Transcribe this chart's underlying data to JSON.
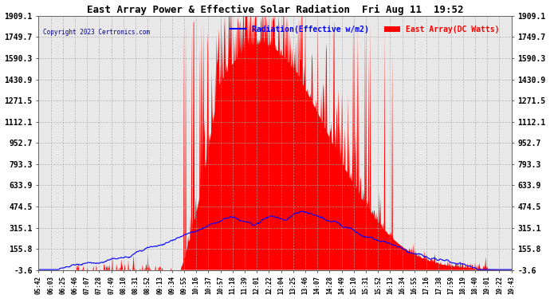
{
  "title": "East Array Power & Effective Solar Radiation  Fri Aug 11  19:52",
  "copyright": "Copyright 2023 Certronics.com",
  "legend_radiation": "Radiation(Effective w/m2)",
  "legend_east": "East Array(DC Watts)",
  "yticks": [
    -3.6,
    155.8,
    315.1,
    474.5,
    633.9,
    793.3,
    952.7,
    1112.1,
    1271.5,
    1430.9,
    1590.3,
    1749.7,
    1909.1
  ],
  "ymin": -3.6,
  "ymax": 1909.1,
  "plot_bg_color": "#f0f0f0",
  "title_color": "#000000",
  "red_color": "#ff0000",
  "blue_color": "#0000ff",
  "grid_color": "#aaaaaa",
  "xtick_labels": [
    "05:42",
    "06:03",
    "06:25",
    "06:46",
    "07:07",
    "07:28",
    "07:49",
    "08:10",
    "08:31",
    "08:52",
    "09:13",
    "09:34",
    "09:55",
    "10:16",
    "10:37",
    "10:57",
    "11:18",
    "11:39",
    "12:01",
    "12:22",
    "13:04",
    "13:25",
    "13:46",
    "14:07",
    "14:28",
    "14:49",
    "15:10",
    "15:31",
    "15:52",
    "16:13",
    "16:34",
    "16:55",
    "17:16",
    "17:38",
    "17:59",
    "18:19",
    "18:40",
    "19:01",
    "19:22",
    "19:43"
  ]
}
